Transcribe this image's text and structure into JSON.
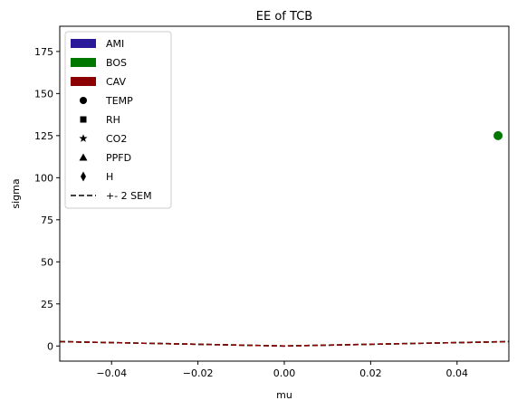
{
  "chart_data": {
    "type": "scatter",
    "title": "EE of TCB",
    "xlabel": "mu",
    "ylabel": "sigma",
    "xlim": [
      -0.052,
      0.052
    ],
    "ylim": [
      -9,
      190
    ],
    "xticks": [
      -0.04,
      -0.02,
      0.0,
      0.02,
      0.04
    ],
    "xtick_labels": [
      "−0.04",
      "−0.02",
      "0.00",
      "0.02",
      "0.04"
    ],
    "yticks": [
      0,
      25,
      50,
      75,
      100,
      125,
      150,
      175
    ],
    "ytick_labels": [
      "0",
      "25",
      "50",
      "75",
      "100",
      "125",
      "150",
      "175"
    ],
    "grid": false,
    "legend_position": "top-left",
    "legend": [
      {
        "label": "AMI",
        "kind": "patch",
        "color": "#2a1a9a"
      },
      {
        "label": "BOS",
        "kind": "patch",
        "color": "#007800"
      },
      {
        "label": "CAV",
        "kind": "patch",
        "color": "#8b0000"
      },
      {
        "label": "TEMP",
        "kind": "marker",
        "marker": "circle"
      },
      {
        "label": "RH",
        "kind": "marker",
        "marker": "square"
      },
      {
        "label": "CO2",
        "kind": "marker",
        "marker": "star"
      },
      {
        "label": "PPFD",
        "kind": "marker",
        "marker": "triangle"
      },
      {
        "label": "H",
        "kind": "marker",
        "marker": "diamond"
      },
      {
        "label": "+- 2 SEM",
        "kind": "dashed-line"
      }
    ],
    "points": [
      {
        "x": 0.0495,
        "y": 125,
        "color": "#007800",
        "marker": "circle"
      }
    ],
    "sem_lines": [
      {
        "color": "#2a1a9a",
        "slope": 50
      },
      {
        "color": "#007800",
        "slope": 50
      },
      {
        "color": "#8b0000",
        "slope": 50
      }
    ]
  }
}
